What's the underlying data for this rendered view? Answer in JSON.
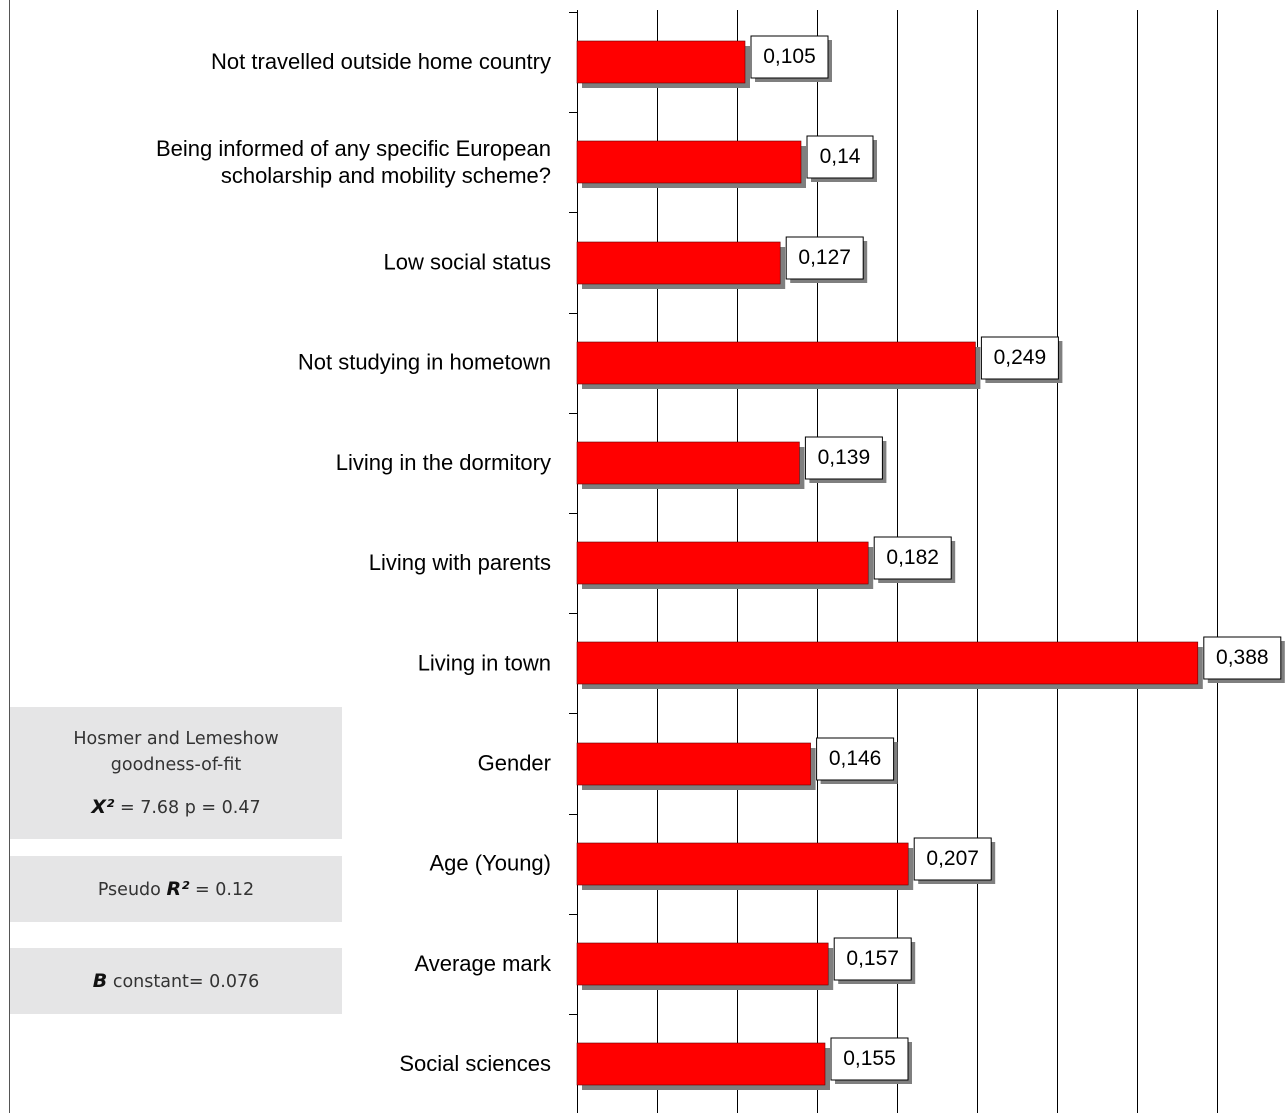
{
  "stats": {
    "hl_title_line1": "Hosmer and Lemeshow",
    "hl_title_line2": "goodness-of-fit",
    "chi_symbol": "X²",
    "chi_value": "= 7.68 p = 0.47",
    "pseudo_prefix": "Pseudo",
    "r2_symbol": "R²",
    "pseudo_value": "= 0.12",
    "b_symbol": "B",
    "b_value": "constant= 0.076"
  },
  "chart_data": {
    "type": "bar",
    "orientation": "horizontal",
    "categories": [
      "Not travelled outside home country",
      "Being informed of any specific European\nscholarship and mobility scheme?",
      "Low social status",
      "Not studying in hometown",
      "Living in the dormitory",
      "Living with parents",
      "Living in town",
      "Gender",
      "Age (Young)",
      "Average mark",
      "Social sciences"
    ],
    "values": [
      0.105,
      0.14,
      0.127,
      0.249,
      0.139,
      0.182,
      0.388,
      0.146,
      0.207,
      0.157,
      0.155
    ],
    "value_labels": [
      "0,105",
      "0,14",
      "0,127",
      "0,249",
      "0,139",
      "0,182",
      "0,388",
      "0,146",
      "0,207",
      "0,157",
      "0,155"
    ],
    "xlim": [
      0,
      0.4
    ],
    "grid": true,
    "bar_color": "#ff0000",
    "shadow_color": "#7f7f7f"
  }
}
